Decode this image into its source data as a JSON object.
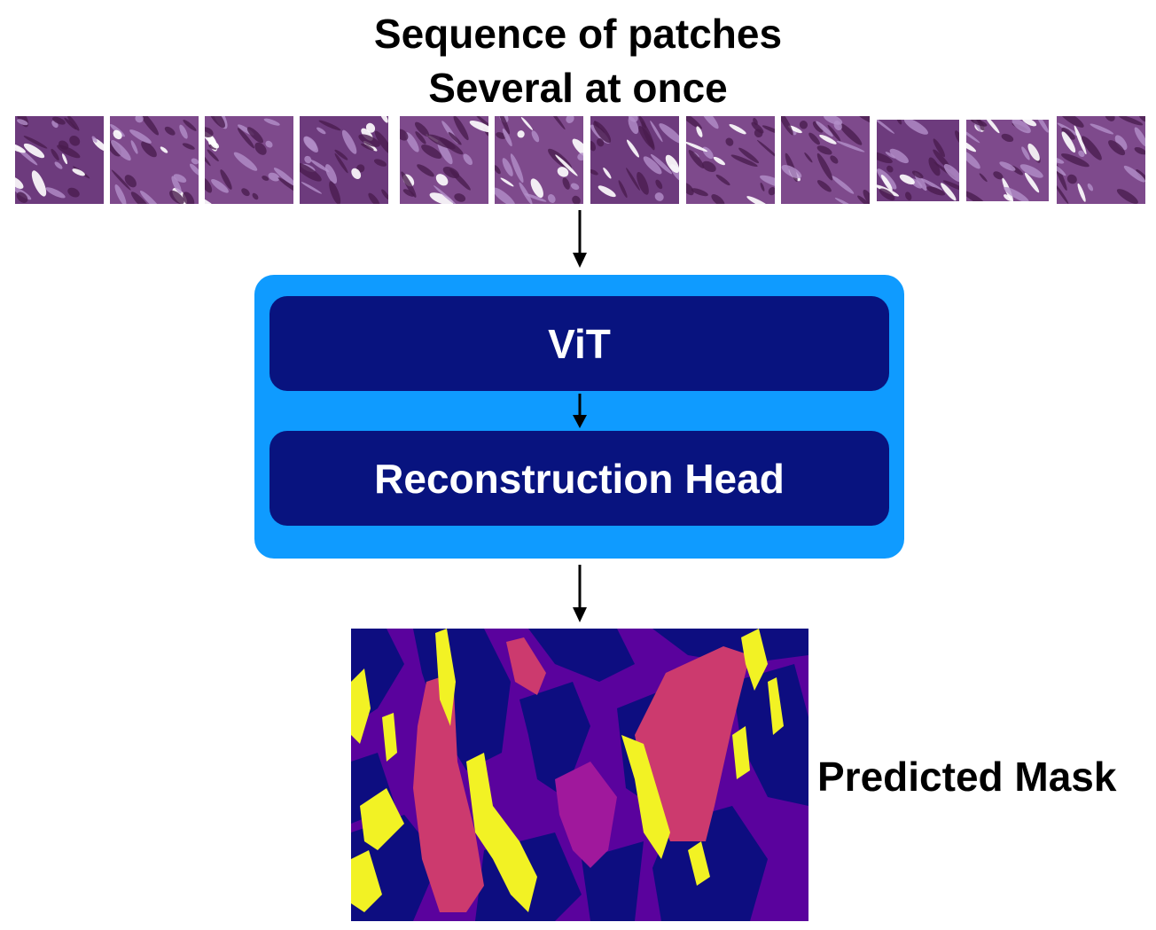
{
  "title": {
    "line1": "Sequence of patches",
    "line2": "Several at once"
  },
  "patches": {
    "count": 12,
    "description": "histology-tile"
  },
  "model": {
    "vit_label": "ViT",
    "head_label": "Reconstruction Head"
  },
  "output": {
    "label": "Predicted Mask"
  },
  "colors": {
    "container": "#0f9bff",
    "block": "#08137f",
    "mask_background": "#5a029d",
    "mask_dark": "#0d0d80",
    "mask_pink": "#cc3a6e",
    "mask_yellow": "#f2f224",
    "mask_magenta": "#a0189c",
    "tissue_dark": "#4a1d4f",
    "tissue_light": "#b38ec9"
  }
}
